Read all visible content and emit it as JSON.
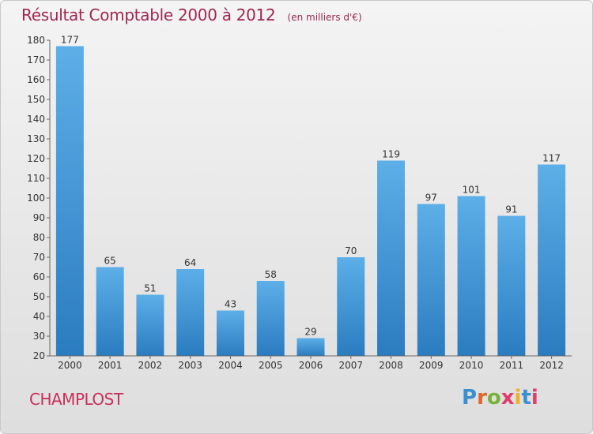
{
  "header": {
    "title": "Résultat Comptable 2000 à 2012",
    "subtitle": "(en milliers d'€)"
  },
  "footer": {
    "commune": "CHAMPLOST",
    "logo": "Proxiti"
  },
  "colors": {
    "title": "#a0284e",
    "commune": "#c8305a",
    "bar_top": "#5dafe8",
    "bar_bottom": "#2a7cc0"
  },
  "chart_data": {
    "type": "bar",
    "title": "Résultat Comptable 2000 à 2012",
    "ylabel": "(en milliers d'€)",
    "categories": [
      "2000",
      "2001",
      "2002",
      "2003",
      "2004",
      "2005",
      "2006",
      "2007",
      "2008",
      "2009",
      "2010",
      "2011",
      "2012"
    ],
    "values": [
      177,
      65,
      51,
      64,
      43,
      58,
      29,
      70,
      119,
      97,
      101,
      91,
      117
    ],
    "ylim": [
      20,
      180
    ],
    "yticks": [
      20,
      30,
      40,
      50,
      60,
      70,
      80,
      90,
      100,
      110,
      120,
      130,
      140,
      150,
      160,
      170,
      180
    ],
    "grid": false,
    "legend": "none"
  }
}
